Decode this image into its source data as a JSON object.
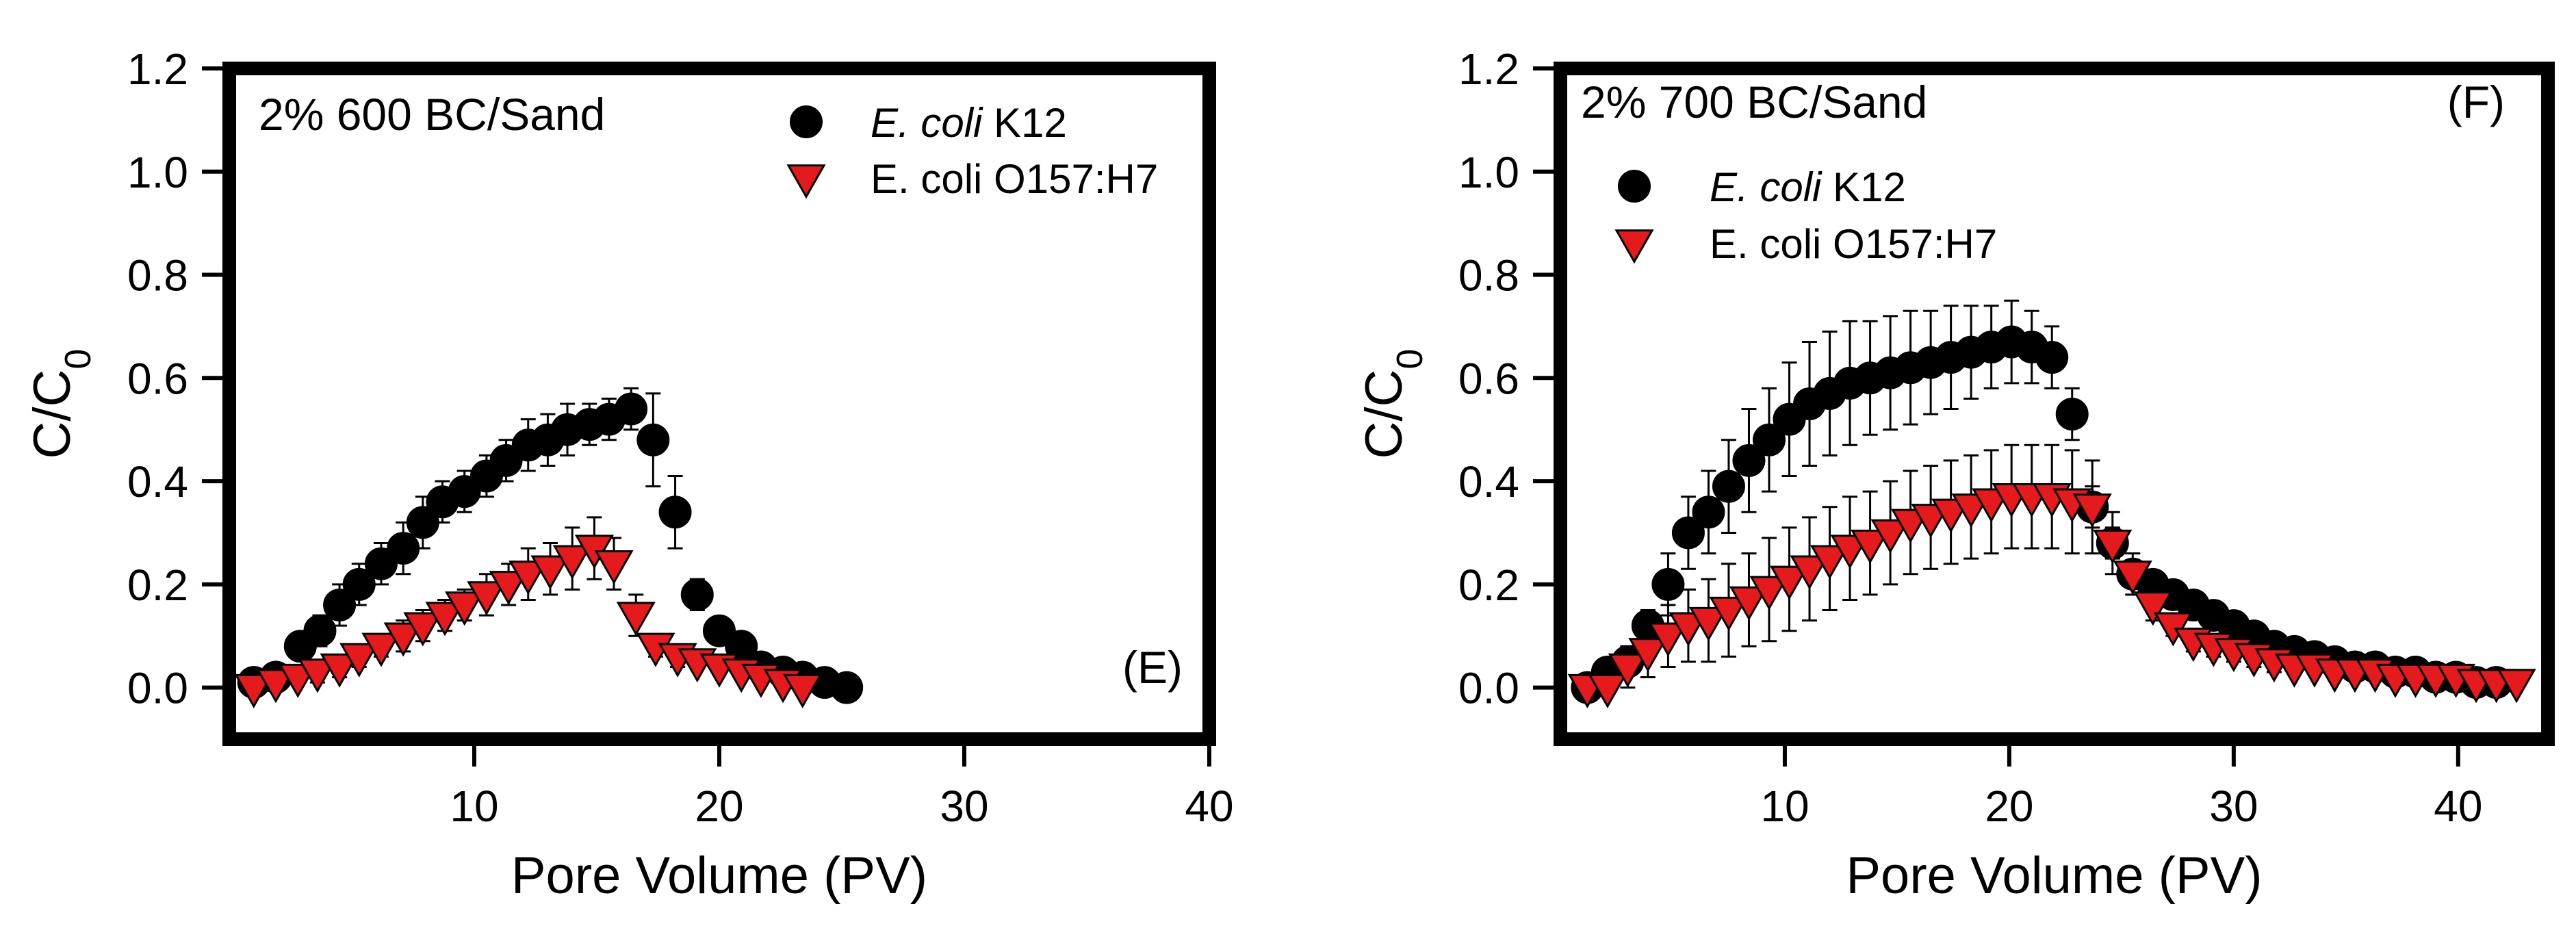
{
  "colors": {
    "background": "#ffffff",
    "axis": "#000000",
    "k12_marker": "#000000",
    "o157_marker": "#e41a1c",
    "o157_edge": "#000000",
    "error_bar": "#000000"
  },
  "chart_data": [
    {
      "type": "scatter",
      "panel_label": "(E)",
      "title": "2% 600 BC/Sand",
      "xlabel": "Pore Volume (PV)",
      "ylabel": {
        "main": "C/C",
        "subscript": "0"
      },
      "xlim": [
        0,
        40
      ],
      "ylim": [
        -0.1,
        1.2
      ],
      "xticks": [
        {
          "value": 10,
          "label": "10"
        },
        {
          "value": 20,
          "label": "20"
        },
        {
          "value": 30,
          "label": "30"
        },
        {
          "value": 40,
          "label": "40"
        }
      ],
      "yticks": [
        {
          "value": 0.0,
          "label": "0.0"
        },
        {
          "value": 0.2,
          "label": "0.2"
        },
        {
          "value": 0.4,
          "label": "0.4"
        },
        {
          "value": 0.6,
          "label": "0.6"
        },
        {
          "value": 0.8,
          "label": "0.8"
        },
        {
          "value": 1.0,
          "label": "1.0"
        },
        {
          "value": 1.2,
          "label": "1.2"
        }
      ],
      "legend": {
        "position": "top-right",
        "entries": [
          {
            "italic": "E. coli",
            "rest": " K12",
            "marker": "circle"
          },
          {
            "italic": "",
            "rest": "E. coli O157:H7",
            "marker": "triangle-down"
          }
        ]
      },
      "series": [
        {
          "name": "E. coli K12",
          "marker": "circle",
          "x": [
            1.0,
            1.9,
            2.9,
            3.7,
            4.5,
            5.3,
            6.2,
            7.1,
            7.9,
            8.7,
            9.6,
            10.5,
            11.3,
            12.2,
            13.0,
            13.8,
            14.7,
            15.5,
            16.4,
            17.3,
            18.2,
            19.1,
            20.0,
            20.9,
            21.7,
            22.6,
            23.4,
            24.3,
            25.2
          ],
          "y": [
            0.01,
            0.02,
            0.08,
            0.11,
            0.16,
            0.2,
            0.24,
            0.27,
            0.32,
            0.36,
            0.38,
            0.41,
            0.44,
            0.47,
            0.48,
            0.5,
            0.51,
            0.52,
            0.54,
            0.48,
            0.34,
            0.18,
            0.11,
            0.08,
            0.04,
            0.03,
            0.02,
            0.01,
            0.0
          ],
          "err": [
            0.01,
            0.02,
            0.02,
            0.03,
            0.04,
            0.04,
            0.04,
            0.05,
            0.05,
            0.04,
            0.04,
            0.04,
            0.04,
            0.05,
            0.05,
            0.05,
            0.04,
            0.04,
            0.04,
            0.09,
            0.07,
            0.03,
            0.02,
            0.01,
            0.01,
            0.01,
            0.01,
            0.0,
            0.0
          ]
        },
        {
          "name": "E. coli O157:H7",
          "marker": "triangle-down",
          "x": [
            1.0,
            1.9,
            2.8,
            3.6,
            4.5,
            5.3,
            6.2,
            7.1,
            7.9,
            8.8,
            9.6,
            10.5,
            11.4,
            12.2,
            13.1,
            14.0,
            14.9,
            15.7,
            16.6,
            17.4,
            18.3,
            19.1,
            20.0,
            20.9,
            21.7,
            22.6,
            23.4
          ],
          "y": [
            0.0,
            0.01,
            0.02,
            0.03,
            0.04,
            0.06,
            0.08,
            0.1,
            0.12,
            0.14,
            0.16,
            0.18,
            0.2,
            0.22,
            0.23,
            0.25,
            0.27,
            0.24,
            0.14,
            0.08,
            0.06,
            0.05,
            0.04,
            0.03,
            0.02,
            0.01,
            0.0
          ],
          "err": [
            0.01,
            0.01,
            0.01,
            0.02,
            0.02,
            0.02,
            0.02,
            0.03,
            0.03,
            0.03,
            0.03,
            0.04,
            0.04,
            0.05,
            0.05,
            0.06,
            0.06,
            0.05,
            0.04,
            0.02,
            0.02,
            0.01,
            0.01,
            0.01,
            0.01,
            0.01,
            0.0
          ]
        }
      ]
    },
    {
      "type": "scatter",
      "panel_label": "(F)",
      "title": "2% 700 BC/Sand",
      "xlabel": "Pore Volume (PV)",
      "ylabel": {
        "main": "C/C",
        "subscript": "0"
      },
      "xlim": [
        0,
        44
      ],
      "ylim": [
        -0.1,
        1.2
      ],
      "xticks": [
        {
          "value": 10,
          "label": "10"
        },
        {
          "value": 20,
          "label": "20"
        },
        {
          "value": 30,
          "label": "30"
        },
        {
          "value": 40,
          "label": "40"
        }
      ],
      "yticks": [
        {
          "value": 0.0,
          "label": "0.0"
        },
        {
          "value": 0.2,
          "label": "0.2"
        },
        {
          "value": 0.4,
          "label": "0.4"
        },
        {
          "value": 0.6,
          "label": "0.6"
        },
        {
          "value": 0.8,
          "label": "0.8"
        },
        {
          "value": 1.0,
          "label": "1.0"
        },
        {
          "value": 1.2,
          "label": "1.2"
        }
      ],
      "legend": {
        "position": "upper-left",
        "entries": [
          {
            "italic": "E. coli",
            "rest": " K12",
            "marker": "circle"
          },
          {
            "italic": "",
            "rest": "E. coli O157:H7",
            "marker": "triangle-down"
          }
        ]
      },
      "series": [
        {
          "name": "E. coli K12",
          "marker": "circle",
          "x": [
            1.2,
            2.1,
            3.0,
            3.9,
            4.8,
            5.7,
            6.6,
            7.5,
            8.4,
            9.3,
            10.2,
            11.1,
            12.0,
            12.9,
            13.8,
            14.7,
            15.6,
            16.5,
            17.4,
            18.3,
            19.2,
            20.1,
            21.0,
            21.9,
            22.8,
            23.7,
            24.6,
            25.5,
            26.4,
            27.3,
            28.2,
            29.1,
            30.0,
            30.9,
            31.8,
            32.7,
            33.6,
            34.5,
            35.4,
            36.3,
            37.2,
            38.1,
            39.0,
            39.9,
            40.8,
            41.7
          ],
          "y": [
            0.0,
            0.03,
            0.05,
            0.12,
            0.2,
            0.3,
            0.34,
            0.39,
            0.44,
            0.48,
            0.52,
            0.55,
            0.57,
            0.59,
            0.6,
            0.61,
            0.62,
            0.63,
            0.64,
            0.65,
            0.66,
            0.67,
            0.66,
            0.64,
            0.53,
            0.35,
            0.28,
            0.22,
            0.2,
            0.18,
            0.16,
            0.14,
            0.12,
            0.1,
            0.08,
            0.07,
            0.06,
            0.05,
            0.04,
            0.04,
            0.03,
            0.03,
            0.02,
            0.02,
            0.01,
            0.01
          ],
          "err": [
            0.01,
            0.01,
            0.02,
            0.03,
            0.06,
            0.07,
            0.08,
            0.09,
            0.1,
            0.1,
            0.11,
            0.12,
            0.12,
            0.12,
            0.11,
            0.11,
            0.11,
            0.1,
            0.1,
            0.09,
            0.08,
            0.08,
            0.07,
            0.06,
            0.05,
            0.04,
            0.03,
            0.02,
            0.02,
            0.02,
            0.02,
            0.02,
            0.02,
            0.02,
            0.02,
            0.02,
            0.01,
            0.01,
            0.01,
            0.01,
            0.01,
            0.01,
            0.01,
            0.01,
            0.01,
            0.0
          ]
        },
        {
          "name": "E. coli O157:H7",
          "marker": "triangle-down",
          "x": [
            1.2,
            2.1,
            3.0,
            3.9,
            4.8,
            5.7,
            6.6,
            7.5,
            8.4,
            9.3,
            10.2,
            11.1,
            12.0,
            12.9,
            13.8,
            14.7,
            15.6,
            16.5,
            17.4,
            18.3,
            19.2,
            20.1,
            21.0,
            21.9,
            22.8,
            23.7,
            24.6,
            25.5,
            26.4,
            27.3,
            28.2,
            29.1,
            30.0,
            30.9,
            31.8,
            32.7,
            33.6,
            34.5,
            35.4,
            36.3,
            37.2,
            38.1,
            39.0,
            39.9,
            40.8,
            41.7,
            42.6
          ],
          "y": [
            0.0,
            0.0,
            0.04,
            0.07,
            0.1,
            0.12,
            0.13,
            0.15,
            0.17,
            0.19,
            0.21,
            0.23,
            0.25,
            0.27,
            0.28,
            0.3,
            0.32,
            0.33,
            0.34,
            0.35,
            0.36,
            0.37,
            0.37,
            0.37,
            0.36,
            0.35,
            0.28,
            0.22,
            0.16,
            0.12,
            0.09,
            0.08,
            0.07,
            0.06,
            0.05,
            0.04,
            0.04,
            0.03,
            0.03,
            0.03,
            0.02,
            0.02,
            0.02,
            0.02,
            0.01,
            0.01,
            0.01
          ],
          "err": [
            0.01,
            0.01,
            0.04,
            0.05,
            0.06,
            0.07,
            0.08,
            0.09,
            0.09,
            0.1,
            0.1,
            0.1,
            0.1,
            0.1,
            0.1,
            0.1,
            0.1,
            0.1,
            0.1,
            0.1,
            0.1,
            0.1,
            0.1,
            0.1,
            0.1,
            0.09,
            0.06,
            0.04,
            0.03,
            0.02,
            0.02,
            0.02,
            0.02,
            0.02,
            0.02,
            0.01,
            0.01,
            0.01,
            0.01,
            0.01,
            0.01,
            0.01,
            0.01,
            0.01,
            0.0,
            0.0,
            0.0
          ]
        }
      ]
    }
  ]
}
